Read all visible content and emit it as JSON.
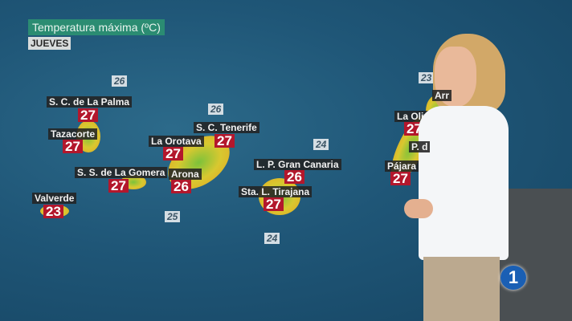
{
  "header": {
    "title": "Temperatura máxima (ºC)",
    "day": "JUEVES"
  },
  "sea_temps": [
    "26",
    "26",
    "24",
    "25",
    "24",
    "23"
  ],
  "cities": [
    {
      "name": "S. C. de La Palma",
      "temp": "27"
    },
    {
      "name": "Tazacorte",
      "temp": "27"
    },
    {
      "name": "La Orotava",
      "temp": "27"
    },
    {
      "name": "S. C. Tenerife",
      "temp": "27"
    },
    {
      "name": "S. S. de La Gomera",
      "temp": "27"
    },
    {
      "name": "Arona",
      "temp": "26"
    },
    {
      "name": "Valverde",
      "temp": "23"
    },
    {
      "name": "L. P. Gran Canaria",
      "temp": "26"
    },
    {
      "name": "Sta. L. Tirajana",
      "temp": "27"
    },
    {
      "name": "La Oliva",
      "temp": "27"
    },
    {
      "name": "Pájara",
      "temp": "27"
    },
    {
      "name": "Arr"
    },
    {
      "name": "P. d"
    }
  ],
  "channel_logo": "1",
  "colors": {
    "title_bg": "#2b8c72",
    "temp_box": "#b3172c",
    "sea": "#1f5677",
    "logo": "#1a5fb4"
  }
}
